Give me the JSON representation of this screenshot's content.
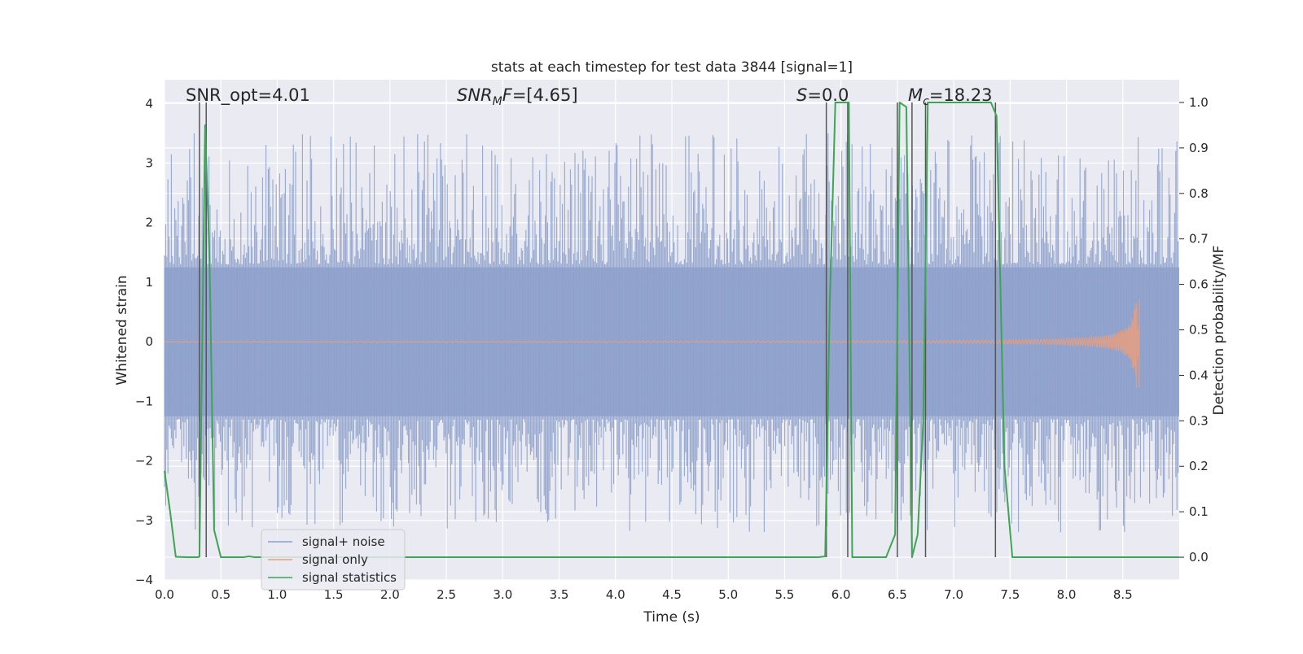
{
  "chart_data": {
    "type": "line",
    "title": "stats at each timestep for test data 3844 [signal=1]",
    "xlabel": "Time (s)",
    "ylabel": "Whitened strain",
    "ylabel_right": "Detection probability/MF",
    "xlim": [
      0.0,
      9.0
    ],
    "ylim": [
      -4.0,
      4.4
    ],
    "ylim_right": [
      -0.05,
      1.05
    ],
    "x_ticks": [
      "0.0",
      "0.5",
      "1.0",
      "1.5",
      "2.0",
      "2.5",
      "3.0",
      "3.5",
      "4.0",
      "4.5",
      "5.0",
      "5.5",
      "6.0",
      "6.5",
      "7.0",
      "7.5",
      "8.0",
      "8.5"
    ],
    "y_ticks": [
      "4",
      "3",
      "2",
      "1",
      "0",
      "−1",
      "−2",
      "−3",
      "−4"
    ],
    "y_ticks_right": [
      "1.0",
      "0.9",
      "0.8",
      "0.7",
      "0.6",
      "0.5",
      "0.4",
      "0.3",
      "0.2",
      "0.1",
      "0.0"
    ],
    "grid": true,
    "legend_position": "lower-left",
    "annotations": [
      {
        "text": "SNR_opt=4.01"
      },
      {
        "text": "SNR_MF=[4.65]"
      },
      {
        "text": "S=0.0"
      },
      {
        "text": "M_c=18.23"
      }
    ],
    "series": [
      {
        "name": "signal+ noise",
        "color": "#8da0cb",
        "description": "whitened noisy strain, fluctuating roughly between -3 and 4 around 0 over the full 0-9 s span"
      },
      {
        "name": "signal only",
        "color": "#e69f80",
        "description": "chirp signal, near zero until ~6 s then growing to amplitude ~0.75 at ~8.65 s"
      },
      {
        "name": "signal statistics",
        "color": "#3fa454",
        "axis": "right",
        "x": [
          0.0,
          0.05,
          0.1,
          0.2,
          0.3,
          0.31,
          0.36,
          0.4,
          0.44,
          0.5,
          0.6,
          0.7,
          0.75,
          0.8,
          1.0,
          2.0,
          3.0,
          4.0,
          5.0,
          5.8,
          5.86,
          5.9,
          5.95,
          6.02,
          6.07,
          6.1,
          6.2,
          6.4,
          6.48,
          6.52,
          6.58,
          6.63,
          6.68,
          6.73,
          6.77,
          6.82,
          7.0,
          7.33,
          7.38,
          7.45,
          7.52,
          7.58,
          8.0,
          8.5,
          9.0
        ],
        "values": [
          0.19,
          0.1,
          0.001,
          0.0,
          0.0,
          0.002,
          0.95,
          0.65,
          0.06,
          0.0,
          0.0,
          0.0,
          0.002,
          0.0,
          0.0,
          0.0,
          0.0,
          0.0,
          0.0,
          0.0,
          0.002,
          0.55,
          1.0,
          1.0,
          1.0,
          0.0,
          0.0,
          0.0,
          0.05,
          1.0,
          0.99,
          0.0,
          0.05,
          0.3,
          1.0,
          1.0,
          1.0,
          1.0,
          0.97,
          0.2,
          0.0,
          0.0,
          0.0,
          0.0,
          0.0
        ]
      }
    ],
    "vertical_markers_s": [
      0.31,
      0.37,
      5.87,
      6.06,
      6.5,
      6.63,
      6.75,
      7.37
    ]
  }
}
